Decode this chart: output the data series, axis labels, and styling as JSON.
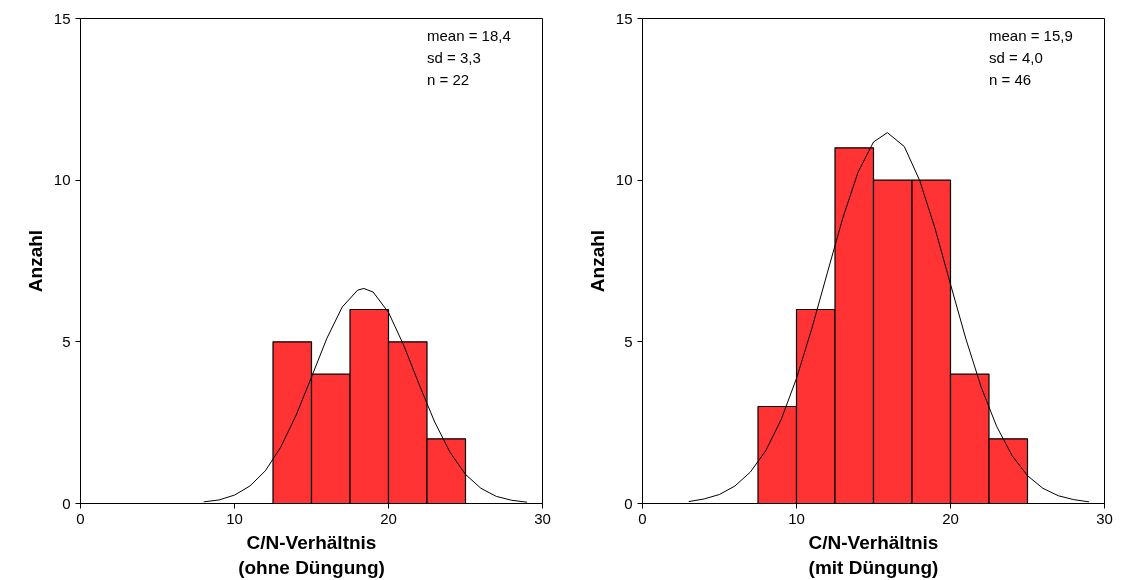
{
  "chart_data": [
    {
      "type": "histogram",
      "bins": [
        12.5,
        15,
        17.5,
        20,
        22.5,
        25
      ],
      "values": [
        5,
        4,
        6,
        5,
        2
      ],
      "color": "#ff3333",
      "xlabel": "C/N-Verhältnis\n(ohne Düngung)",
      "ylabel": "Anzahl",
      "xlim": [
        0,
        30
      ],
      "xticks": [
        0,
        10,
        20,
        30
      ],
      "ylim": [
        0,
        15
      ],
      "yticks": [
        0,
        5,
        10,
        15
      ],
      "annotations": [
        "mean = 18,4",
        "sd = 3,3",
        "n = 22"
      ],
      "series": [
        {
          "type": "line",
          "color": "#000000",
          "x": [
            8,
            9,
            10,
            11,
            12,
            13,
            14,
            15,
            16,
            17,
            18,
            18.4,
            19,
            20,
            21,
            22,
            23,
            24,
            25,
            26,
            27,
            28,
            29
          ],
          "values": [
            0.05,
            0.11,
            0.26,
            0.54,
            1.01,
            1.74,
            2.73,
            3.91,
            5.11,
            6.08,
            6.6,
            6.65,
            6.54,
            5.91,
            4.88,
            3.67,
            2.52,
            1.58,
            0.9,
            0.47,
            0.22,
            0.1,
            0.04
          ]
        }
      ]
    },
    {
      "type": "histogram",
      "bins": [
        7.5,
        10,
        12.5,
        15,
        17.5,
        20,
        22.5,
        25
      ],
      "values": [
        3,
        6,
        11,
        10,
        10,
        4,
        2
      ],
      "color": "#ff3333",
      "xlabel": "C/N-Verhältnis\n(mit Düngung)",
      "ylabel": "Anzahl",
      "xlim": [
        0,
        30
      ],
      "xticks": [
        0,
        10,
        20,
        30
      ],
      "ylim": [
        0,
        15
      ],
      "yticks": [
        0,
        5,
        10,
        15
      ],
      "annotations": [
        "mean = 15,9",
        "sd = 4,0",
        "n = 46"
      ],
      "series": [
        {
          "type": "line",
          "color": "#000000",
          "x": [
            3,
            4,
            5,
            6,
            7,
            8,
            9,
            10,
            11,
            12,
            13,
            14,
            15,
            15.9,
            17,
            18,
            19,
            20,
            21,
            22,
            23,
            24,
            25,
            26,
            27,
            28,
            29
          ],
          "values": [
            0.06,
            0.14,
            0.28,
            0.54,
            0.97,
            1.63,
            2.59,
            3.87,
            5.42,
            7.13,
            8.82,
            10.25,
            11.18,
            11.47,
            11.04,
            9.99,
            8.5,
            6.78,
            5.09,
            3.59,
            2.38,
            1.48,
            0.86,
            0.47,
            0.24,
            0.12,
            0.05
          ]
        }
      ]
    }
  ]
}
